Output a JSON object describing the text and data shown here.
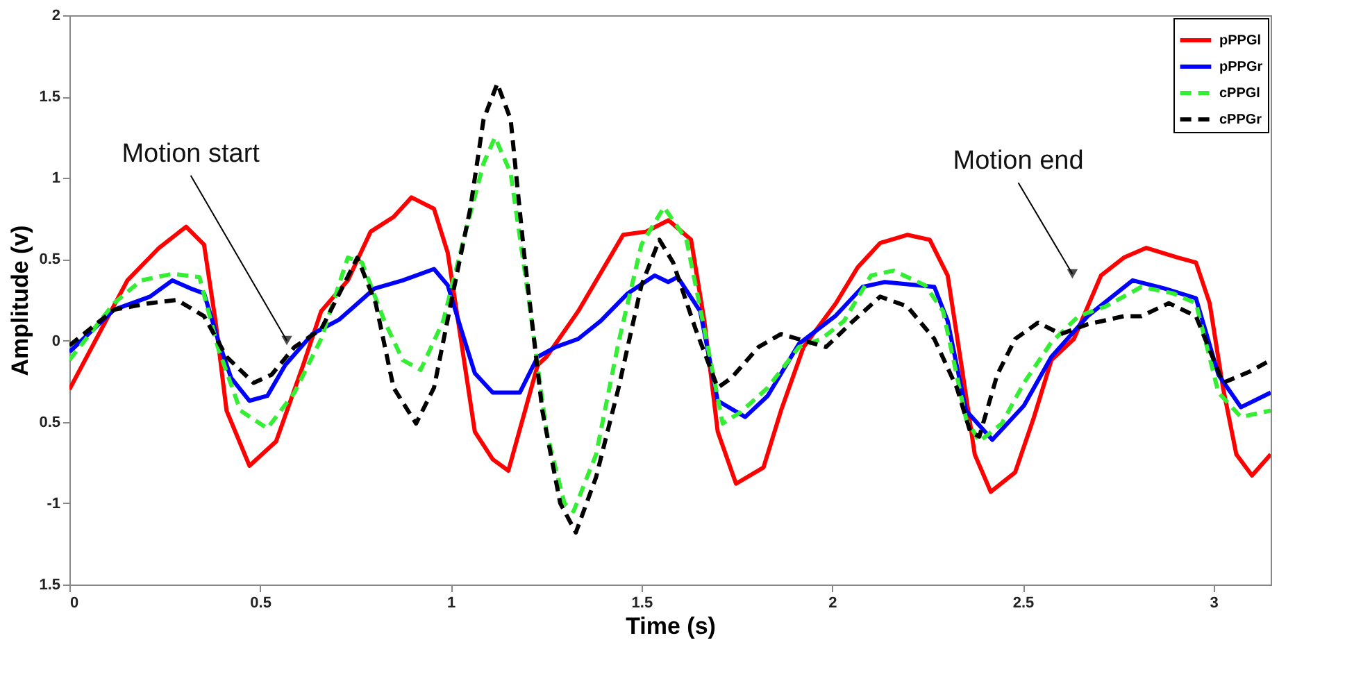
{
  "chart_data": {
    "type": "line",
    "xlabel": "Time (s)",
    "ylabel": "Amplitude (v)",
    "xlim": [
      0,
      3.15
    ],
    "xticks": [
      0,
      0.5,
      1,
      1.5,
      2,
      2.5,
      3
    ],
    "ylim": [
      -1.5,
      2
    ],
    "yticks": [
      {
        "value": -1.5,
        "label": "1.5"
      },
      -1,
      {
        "value": -0.5,
        "label": "0.5"
      },
      0,
      0.5,
      1,
      1.5,
      2
    ],
    "grid": false,
    "legend": "top right",
    "marker": "none",
    "annotations": [
      {
        "text": "Motion start",
        "x": 0.57,
        "y": 0.0
      },
      {
        "text": "Motion end",
        "x": 2.63,
        "y": 0.41
      }
    ],
    "series": [
      {
        "name": "pPPGl",
        "color": "#ff0000",
        "line_style": "solid",
        "x": [
          0,
          0.152,
          0.235,
          0.306,
          0.353,
          0.383,
          0.412,
          0.472,
          0.542,
          0.613,
          0.66,
          0.73,
          0.79,
          0.85,
          0.897,
          0.956,
          0.992,
          1.027,
          1.063,
          1.11,
          1.151,
          1.228,
          1.251,
          1.334,
          1.452,
          1.512,
          1.571,
          1.63,
          1.665,
          1.7,
          1.748,
          1.82,
          1.866,
          1.925,
          2.01,
          2.067,
          2.126,
          2.197,
          2.256,
          2.303,
          2.339,
          2.374,
          2.416,
          2.48,
          2.528,
          2.575,
          2.634,
          2.705,
          2.765,
          2.824,
          2.907,
          2.954,
          2.99,
          3.025,
          3.06,
          3.101,
          3.15
        ],
        "values": [
          -0.3,
          0.37,
          0.57,
          0.7,
          0.59,
          0.12,
          -0.43,
          -0.77,
          -0.62,
          -0.15,
          0.18,
          0.37,
          0.67,
          0.76,
          0.88,
          0.81,
          0.54,
          0.0,
          -0.56,
          -0.73,
          -0.8,
          -0.15,
          -0.1,
          0.18,
          0.65,
          0.67,
          0.74,
          0.62,
          0.12,
          -0.56,
          -0.88,
          -0.78,
          -0.43,
          -0.04,
          0.23,
          0.45,
          0.6,
          0.65,
          0.62,
          0.4,
          -0.15,
          -0.7,
          -0.93,
          -0.81,
          -0.48,
          -0.12,
          0.01,
          0.4,
          0.51,
          0.57,
          0.51,
          0.48,
          0.23,
          -0.29,
          -0.7,
          -0.83,
          -0.7
        ]
      },
      {
        "name": "pPPGr",
        "color": "#0000ff",
        "line_style": "solid",
        "x": [
          0,
          0.117,
          0.211,
          0.27,
          0.318,
          0.353,
          0.389,
          0.424,
          0.472,
          0.519,
          0.566,
          0.637,
          0.708,
          0.8,
          0.874,
          0.956,
          0.992,
          1.027,
          1.063,
          1.11,
          1.181,
          1.228,
          1.275,
          1.334,
          1.393,
          1.464,
          1.535,
          1.57,
          1.595,
          1.654,
          1.7,
          1.772,
          1.831,
          1.913,
          2.008,
          2.08,
          2.138,
          2.268,
          2.303,
          2.351,
          2.42,
          2.503,
          2.575,
          2.67,
          2.788,
          2.872,
          2.954,
          3.013,
          3.072,
          3.15
        ],
        "values": [
          -0.07,
          0.19,
          0.27,
          0.37,
          0.32,
          0.29,
          0.01,
          -0.23,
          -0.37,
          -0.34,
          -0.15,
          0.04,
          0.13,
          0.32,
          0.37,
          0.44,
          0.34,
          0.07,
          -0.2,
          -0.32,
          -0.32,
          -0.1,
          -0.04,
          0.01,
          0.12,
          0.29,
          0.4,
          0.36,
          0.39,
          0.18,
          -0.37,
          -0.47,
          -0.34,
          -0.02,
          0.15,
          0.33,
          0.36,
          0.33,
          0.12,
          -0.43,
          -0.61,
          -0.4,
          -0.1,
          0.15,
          0.37,
          0.32,
          0.26,
          -0.21,
          -0.41,
          -0.32
        ]
      },
      {
        "name": "cPPGl",
        "color": "#33ee33",
        "line_style": "dashed",
        "x": [
          0,
          0.117,
          0.188,
          0.27,
          0.341,
          0.389,
          0.448,
          0.519,
          0.59,
          0.66,
          0.73,
          0.767,
          0.826,
          0.874,
          0.921,
          0.98,
          1.039,
          1.086,
          1.116,
          1.157,
          1.204,
          1.251,
          1.298,
          1.322,
          1.381,
          1.44,
          1.5,
          1.559,
          1.618,
          1.665,
          1.713,
          1.76,
          1.831,
          1.913,
          1.972,
          2.031,
          2.102,
          2.161,
          2.244,
          2.291,
          2.351,
          2.386,
          2.445,
          2.503,
          2.575,
          2.646,
          2.717,
          2.811,
          2.894,
          2.954,
          3.013,
          3.072,
          3.15
        ],
        "values": [
          -0.12,
          0.23,
          0.37,
          0.41,
          0.39,
          -0.04,
          -0.43,
          -0.54,
          -0.32,
          0.01,
          0.51,
          0.48,
          0.12,
          -0.12,
          -0.18,
          0.12,
          0.67,
          1.09,
          1.25,
          1.03,
          0.26,
          -0.56,
          -1.0,
          -1.05,
          -0.7,
          -0.01,
          0.59,
          0.82,
          0.62,
          0.07,
          -0.51,
          -0.44,
          -0.29,
          -0.04,
          0.01,
          0.12,
          0.4,
          0.43,
          0.34,
          0.18,
          -0.48,
          -0.62,
          -0.51,
          -0.26,
          -0.01,
          0.15,
          0.21,
          0.33,
          0.29,
          0.23,
          -0.32,
          -0.47,
          -0.43
        ]
      },
      {
        "name": "cPPGr",
        "color": "#000000",
        "line_style": "dashed",
        "x": [
          0,
          0.117,
          0.211,
          0.282,
          0.353,
          0.412,
          0.483,
          0.53,
          0.59,
          0.66,
          0.708,
          0.755,
          0.803,
          0.85,
          0.909,
          0.956,
          1.003,
          1.051,
          1.086,
          1.122,
          1.157,
          1.192,
          1.24,
          1.287,
          1.328,
          1.381,
          1.44,
          1.5,
          1.547,
          1.583,
          1.642,
          1.7,
          1.736,
          1.807,
          1.866,
          1.925,
          1.984,
          2.055,
          2.126,
          2.197,
          2.268,
          2.327,
          2.362,
          2.386,
          2.433,
          2.48,
          2.54,
          2.6,
          2.67,
          2.765,
          2.811,
          2.883,
          2.954,
          3.025,
          3.096,
          3.15
        ],
        "values": [
          -0.03,
          0.19,
          0.23,
          0.25,
          0.15,
          -0.1,
          -0.26,
          -0.21,
          -0.04,
          0.07,
          0.29,
          0.51,
          0.23,
          -0.29,
          -0.51,
          -0.29,
          0.26,
          0.81,
          1.36,
          1.58,
          1.36,
          0.54,
          -0.43,
          -1.0,
          -1.18,
          -0.84,
          -0.29,
          0.34,
          0.62,
          0.48,
          0.07,
          -0.29,
          -0.23,
          -0.04,
          0.04,
          0.0,
          -0.04,
          0.12,
          0.27,
          0.21,
          0.01,
          -0.29,
          -0.56,
          -0.59,
          -0.21,
          0.01,
          0.11,
          0.04,
          0.1,
          0.15,
          0.15,
          0.23,
          0.15,
          -0.26,
          -0.19,
          -0.12
        ]
      }
    ]
  }
}
